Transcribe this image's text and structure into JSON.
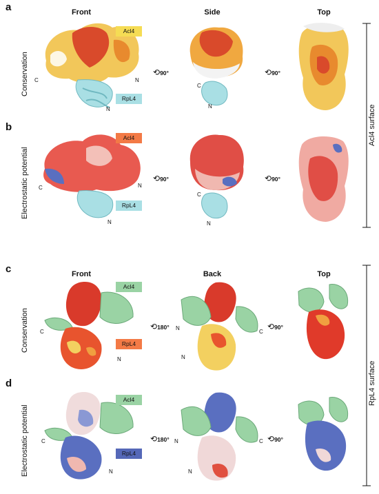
{
  "panels": [
    {
      "letter": "a",
      "row_label": "Conservation",
      "columns": [
        "Front",
        "Side",
        "Top"
      ],
      "tags": [
        {
          "text": "Acl4",
          "color": "#f5dc54"
        },
        {
          "text": "RpL4",
          "color": "#a9dfe4"
        }
      ],
      "rotations": [
        "90°",
        "90°"
      ]
    },
    {
      "letter": "b",
      "row_label": "Electrostatic potential",
      "tags": [
        {
          "text": "Acl4",
          "color": "#f37a46"
        },
        {
          "text": "RpL4",
          "color": "#a9dfe4"
        }
      ],
      "rotations": [
        "90°",
        "90°"
      ]
    },
    {
      "letter": "c",
      "row_label": "Conservation",
      "columns": [
        "Front",
        "Back",
        "Top"
      ],
      "tags": [
        {
          "text": "Acl4",
          "color": "#9ad3a4"
        },
        {
          "text": "RpL4",
          "color": "#f37a46"
        }
      ],
      "rotations": [
        "180°",
        "90°"
      ]
    },
    {
      "letter": "d",
      "row_label": "Electrostatic potential",
      "tags": [
        {
          "text": "Acl4",
          "color": "#9ad3a4"
        },
        {
          "text": "RpL4",
          "color": "#5568b8"
        }
      ],
      "rotations": [
        "180°",
        "90°"
      ]
    }
  ],
  "brackets": {
    "top": "Acl4 surface",
    "bottom": "RpL4 surface"
  },
  "termini": {
    "c": "C",
    "n": "N"
  }
}
